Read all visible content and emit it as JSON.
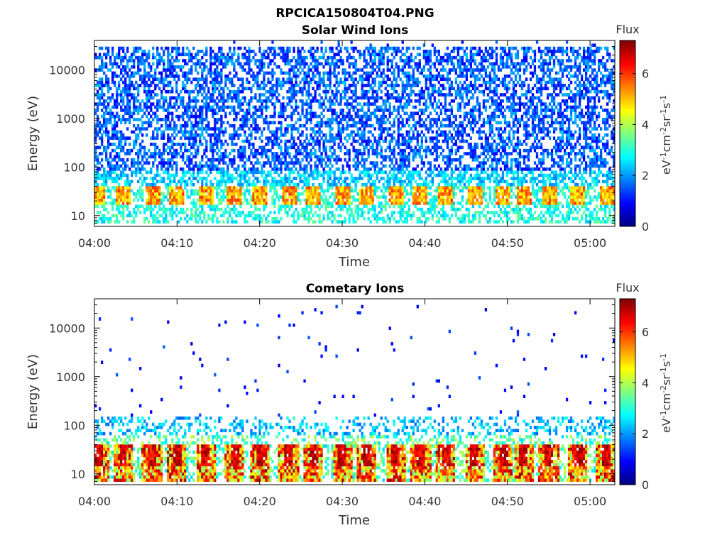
{
  "figure_title": "RPCICA150804T04.PNG",
  "chart_data": [
    {
      "type": "heatmap",
      "title": "Solar Wind Ions",
      "xlabel": "Time",
      "ylabel": "Energy (eV)",
      "x_ticks": [
        "04:00",
        "04:10",
        "04:20",
        "04:30",
        "04:40",
        "04:50",
        "05:00"
      ],
      "y_ticks": [
        "10",
        "100",
        "1000",
        "10000"
      ],
      "y_scale": "log",
      "ylim": [
        6,
        40000
      ],
      "xlim": [
        "04:00",
        "05:03"
      ],
      "colorbar": {
        "label": "Flux",
        "units": "eV-1cm-2sr-1s-1",
        "ticks": [
          "0",
          "2",
          "4",
          "6"
        ],
        "range": [
          0,
          7.3
        ],
        "colormap": "jet"
      },
      "bursts_minutes": [
        0.5,
        3.5,
        7,
        10,
        13.5,
        17,
        20,
        23.5,
        26.5,
        30,
        33,
        36.5,
        39.5,
        42.5,
        46,
        49.5,
        52,
        55,
        58.5,
        62
      ],
      "pattern": "dense low-level flux (values ~1-3) across 100 eV - 30 keV; peaks ~4.5-6 around 20-40 eV in periodic bursts"
    },
    {
      "type": "heatmap",
      "title": "Cometary Ions",
      "xlabel": "Time",
      "ylabel": "Energy (eV)",
      "x_ticks": [
        "04:00",
        "04:10",
        "04:20",
        "04:30",
        "04:40",
        "04:50",
        "05:00"
      ],
      "y_ticks": [
        "10",
        "100",
        "1000",
        "10000"
      ],
      "y_scale": "log",
      "ylim": [
        6,
        40000
      ],
      "xlim": [
        "04:00",
        "05:03"
      ],
      "colorbar": {
        "label": "Flux",
        "units": "eV-1cm-2sr-1s-1",
        "ticks": [
          "0",
          "2",
          "4",
          "6"
        ],
        "range": [
          0,
          7.3
        ],
        "colormap": "jet"
      },
      "bursts_minutes": [
        0.5,
        3.5,
        7,
        10,
        13.5,
        17,
        20,
        23.5,
        26.5,
        30,
        33,
        36.5,
        39.5,
        42.5,
        46,
        49.5,
        52,
        55,
        58.5,
        62
      ],
      "pattern": "sparse points above 200 eV; strong periodic bursts (values up to ~7) between 10 and 40 eV"
    }
  ],
  "colors": {
    "background": "#ffffff",
    "axis": "#000000",
    "text": "#333333"
  }
}
